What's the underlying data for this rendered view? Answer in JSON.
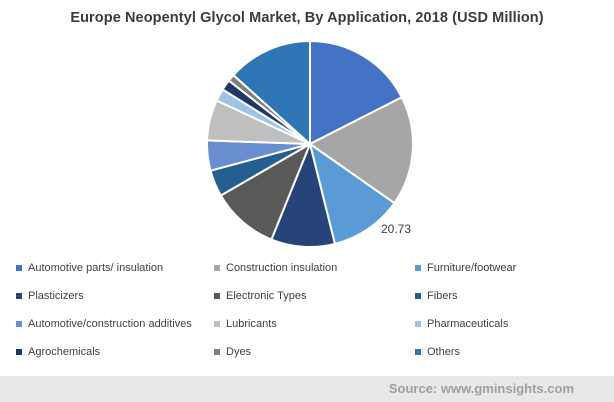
{
  "title": "Europe Neopentyl Glycol Market, By Application, 2018 (USD Million)",
  "chart_data": {
    "type": "pie",
    "title": "Europe Neopentyl Glycol Market, By Application, 2018 (USD Million)",
    "unit": "USD Million",
    "year": "2018",
    "start_angle_deg": 0,
    "direction": "clockwise",
    "legend_position": "bottom",
    "data_label": {
      "text": "20.73",
      "slice": "Furniture/footwear"
    },
    "slices": [
      {
        "label": "Automotive parts/ insulation",
        "color": "#4472C4",
        "angle_deg": 63,
        "approx_pct": 17.5
      },
      {
        "label": "Construction insulation",
        "color": "#A6A6A6",
        "angle_deg": 62,
        "approx_pct": 17.2
      },
      {
        "label": "Furniture/footwear",
        "color": "#5B9BD5",
        "angle_deg": 41,
        "approx_pct": 11.4,
        "value_label": "20.73"
      },
      {
        "label": "Plasticizers",
        "color": "#264478",
        "angle_deg": 36,
        "approx_pct": 10.0
      },
      {
        "label": "Electronic Types",
        "color": "#595959",
        "angle_deg": 38,
        "approx_pct": 10.6
      },
      {
        "label": "Fibers",
        "color": "#255E91",
        "angle_deg": 15,
        "approx_pct": 4.2
      },
      {
        "label": "Automotive/construction additives",
        "color": "#698ED0",
        "angle_deg": 17,
        "approx_pct": 4.7
      },
      {
        "label": "Lubricants",
        "color": "#BFBFBF",
        "angle_deg": 23,
        "approx_pct": 6.4
      },
      {
        "label": "Pharmaceuticals",
        "color": "#9DC3E6",
        "angle_deg": 7,
        "approx_pct": 1.9
      },
      {
        "label": "Agrochemicals",
        "color": "#203864",
        "angle_deg": 6,
        "approx_pct": 1.7
      },
      {
        "label": "Dyes",
        "color": "#7F7F7F",
        "angle_deg": 4,
        "approx_pct": 1.1
      },
      {
        "label": "Others",
        "color": "#2E75B6",
        "angle_deg": 48,
        "approx_pct": 13.3
      }
    ]
  },
  "legend": {
    "columns": [
      {
        "items": [
          {
            "label": "Automotive parts/ insulation",
            "color": "#4472C4"
          },
          {
            "label": "Plasticizers",
            "color": "#264478"
          },
          {
            "label": "Automotive/construction additives",
            "color": "#698ED0"
          },
          {
            "label": "Agrochemicals",
            "color": "#203864"
          }
        ]
      },
      {
        "items": [
          {
            "label": "Construction insulation",
            "color": "#A6A6A6"
          },
          {
            "label": "Electronic Types",
            "color": "#595959"
          },
          {
            "label": "Lubricants",
            "color": "#BFBFBF"
          },
          {
            "label": "Dyes",
            "color": "#7F7F7F"
          }
        ]
      },
      {
        "items": [
          {
            "label": "Furniture/footwear",
            "color": "#5B9BD5"
          },
          {
            "label": "Fibers",
            "color": "#255E91"
          },
          {
            "label": "Pharmaceuticals",
            "color": "#9DC3E6"
          },
          {
            "label": "Others",
            "color": "#2E75B6"
          }
        ]
      }
    ]
  },
  "footer": {
    "source_label": "Source: www.gminsights.com",
    "background": "#E8E8E8",
    "text_color": "#9E9E9E"
  }
}
